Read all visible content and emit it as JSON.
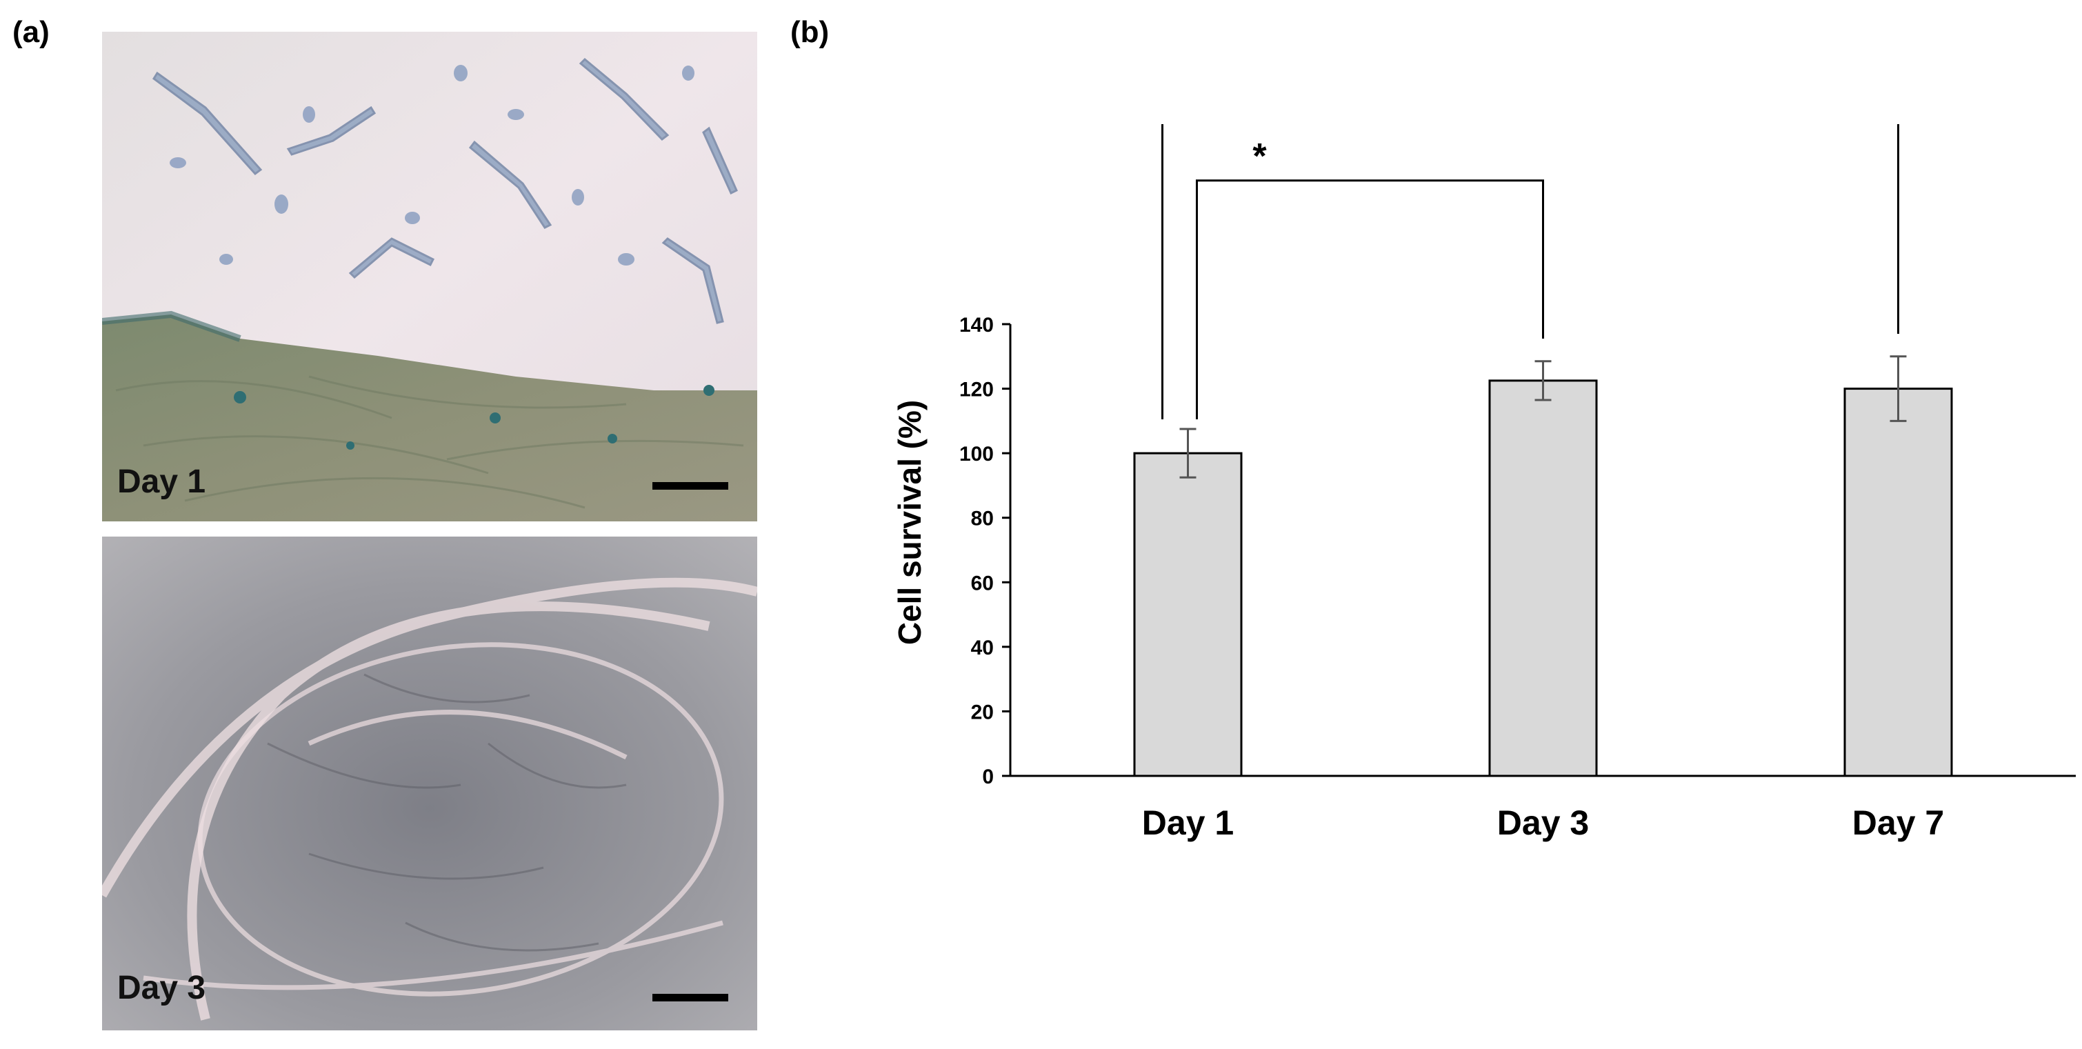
{
  "panels": {
    "a_label": "(a)",
    "b_label": "(b)"
  },
  "micrographs": [
    {
      "label": "Day 1"
    },
    {
      "label": "Day 3"
    }
  ],
  "chart_data": {
    "type": "bar",
    "categories": [
      "Day 1",
      "Day 3",
      "Day 7"
    ],
    "values": [
      100,
      122.5,
      120
    ],
    "errors": [
      7.5,
      6,
      10
    ],
    "ylabel": "Cell survival (%)",
    "xlabel": "",
    "ylim": [
      0,
      140
    ],
    "yticks": [
      0,
      20,
      40,
      60,
      80,
      100,
      120,
      140
    ],
    "grid": false,
    "bar_fill": "#d9d9d9",
    "significance": [
      {
        "from": "Day 1",
        "to": "Day 3",
        "label": "*"
      },
      {
        "from": "Day 1",
        "to": "Day 7",
        "label": "*"
      }
    ]
  }
}
